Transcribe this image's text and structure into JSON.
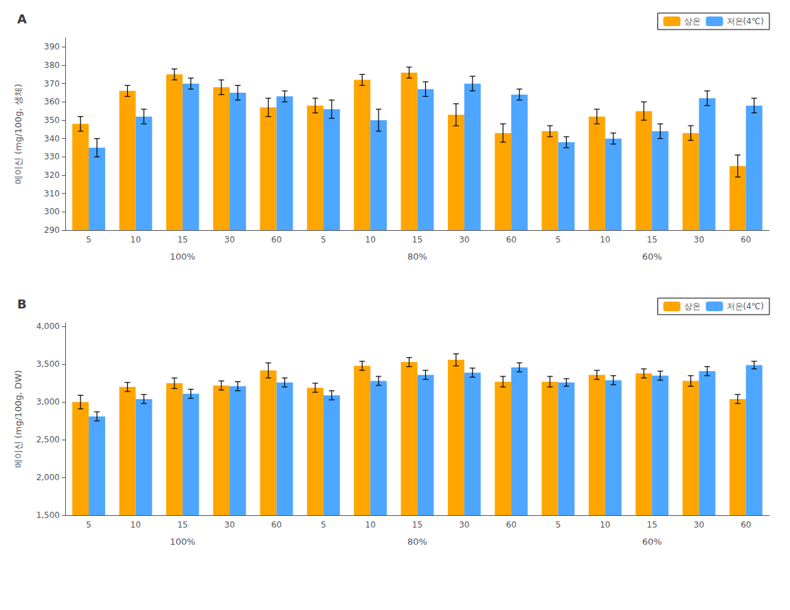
{
  "chart_data": [
    {
      "type": "bar",
      "title": "A",
      "ylabel": "메이신 (mg/100g, 생체)",
      "categories": [
        "5",
        "10",
        "15",
        "30",
        "60",
        "5",
        "10",
        "15",
        "30",
        "60",
        "5",
        "10",
        "15",
        "30",
        "60"
      ],
      "groups": [
        "100%",
        "80%",
        "60%"
      ],
      "series": [
        {
          "name": "상온",
          "color": "#FFA500",
          "values": [
            348,
            366,
            375,
            368,
            357,
            358,
            372,
            376,
            353,
            343,
            344,
            352,
            355,
            343,
            325
          ],
          "errors": [
            4,
            3,
            3,
            4,
            5,
            4,
            3,
            3,
            6,
            5,
            3,
            4,
            5,
            4,
            6
          ]
        },
        {
          "name": "저온(4℃)",
          "color": "#4DA6FF",
          "values": [
            335,
            352,
            370,
            365,
            363,
            356,
            350,
            367,
            370,
            364,
            338,
            340,
            344,
            362,
            358
          ],
          "errors": [
            5,
            4,
            3,
            4,
            3,
            5,
            6,
            4,
            4,
            3,
            3,
            3,
            4,
            4,
            4
          ]
        }
      ],
      "ylim": [
        290,
        395
      ],
      "yticks": [
        290,
        300,
        310,
        320,
        330,
        340,
        350,
        360,
        370,
        380,
        390
      ],
      "grid": false,
      "legend": "upper right"
    },
    {
      "type": "bar",
      "title": "B",
      "ylabel": "메이신 (mg/100g, DW)",
      "categories": [
        "5",
        "10",
        "15",
        "30",
        "60",
        "5",
        "10",
        "15",
        "30",
        "60",
        "5",
        "10",
        "15",
        "30",
        "60"
      ],
      "groups": [
        "100%",
        "80%",
        "60%"
      ],
      "series": [
        {
          "name": "상온",
          "color": "#FFA500",
          "values": [
            3000,
            3200,
            3250,
            3220,
            3420,
            3190,
            3480,
            3530,
            3560,
            3270,
            3270,
            3360,
            3380,
            3280,
            3040
          ],
          "errors": [
            90,
            60,
            70,
            60,
            100,
            60,
            60,
            60,
            80,
            70,
            70,
            60,
            60,
            70,
            60
          ]
        },
        {
          "name": "저온(4℃)",
          "color": "#4DA6FF",
          "values": [
            2810,
            3040,
            3110,
            3210,
            3260,
            3090,
            3280,
            3360,
            3390,
            3460,
            3260,
            3290,
            3350,
            3410,
            3490
          ],
          "errors": [
            60,
            60,
            60,
            60,
            60,
            60,
            60,
            60,
            60,
            60,
            50,
            60,
            60,
            60,
            50
          ]
        }
      ],
      "ylim": [
        1500,
        4050
      ],
      "yticks": [
        {
          "value": 1500,
          "label": "1,500"
        },
        {
          "value": 2000,
          "label": "2,000"
        },
        {
          "value": 2500,
          "label": "2,500"
        },
        {
          "value": 3000,
          "label": "3,000"
        },
        {
          "value": 3500,
          "label": "3,500"
        },
        {
          "value": 4000,
          "label": "4,000"
        }
      ],
      "grid": false,
      "legend": "upper right"
    }
  ]
}
